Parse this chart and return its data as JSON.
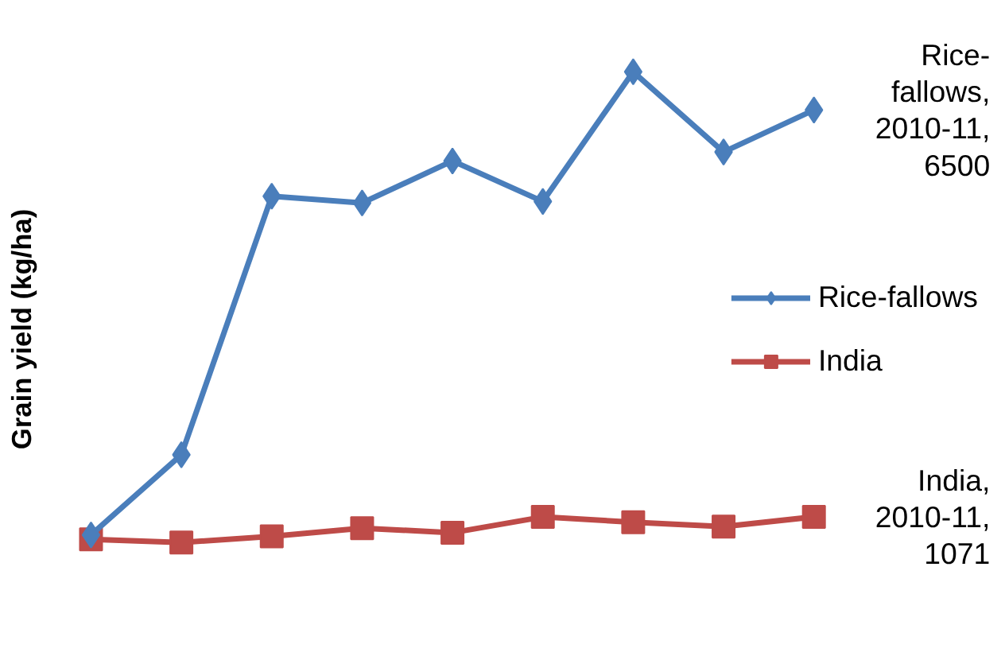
{
  "chart_data": {
    "type": "line",
    "ylabel": "Grain yield (kg/ha)",
    "categories": [
      null,
      null,
      null,
      null,
      null,
      null,
      null,
      null,
      null
    ],
    "series": [
      {
        "name": "Rice-fallows",
        "color": "#4a7ebb",
        "marker": "diamond",
        "values": [
          830,
          1900,
          5350,
          5260,
          5820,
          5280,
          7010,
          5940,
          6500
        ],
        "value_labels": [
          null,
          null,
          null,
          null,
          null,
          null,
          null,
          null,
          "Rice-fallows, 2010-11, 6500"
        ]
      },
      {
        "name": "India",
        "color": "#be4b48",
        "marker": "square",
        "values": [
          770,
          730,
          810,
          920,
          860,
          1070,
          1000,
          940,
          1071
        ],
        "value_labels": [
          null,
          null,
          null,
          null,
          null,
          null,
          null,
          null,
          "India, 2010-11, 1071"
        ]
      }
    ],
    "legend": "right",
    "grid": false
  }
}
